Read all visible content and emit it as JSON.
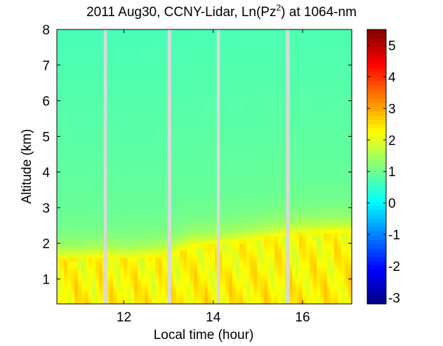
{
  "chart_data": {
    "type": "heatmap",
    "title": {
      "prefix": "2011 Aug30, CCNY-Lidar, Ln(Pz",
      "superscript": "2",
      "suffix": ") at 1064-nm"
    },
    "xlabel": "Local time (hour)",
    "ylabel": "Altitude (km)",
    "xlim": [
      10.5,
      17.1
    ],
    "ylim": [
      0.3,
      8.0
    ],
    "x_ticks": [
      12,
      14,
      16
    ],
    "y_ticks": [
      1,
      2,
      3,
      4,
      5,
      6,
      7,
      8
    ],
    "colorbar": {
      "range": [
        -3.2,
        5.5
      ],
      "ticks": [
        -3,
        -2,
        -1,
        0,
        1,
        2,
        3,
        4,
        5
      ],
      "colormap": "jet"
    },
    "data_gaps_hours": [
      [
        11.55,
        11.62
      ],
      [
        12.98,
        13.06
      ],
      [
        14.08,
        14.15
      ],
      [
        15.63,
        15.71
      ]
    ],
    "boundary_layer_top_km": {
      "x": [
        10.5,
        11.0,
        11.5,
        12.0,
        12.5,
        13.0,
        13.5,
        14.0,
        14.5,
        15.0,
        15.5,
        16.0,
        16.5,
        17.0
      ],
      "y": [
        1.55,
        1.55,
        1.6,
        1.55,
        1.6,
        1.65,
        1.9,
        1.95,
        2.0,
        2.1,
        2.2,
        2.25,
        2.3,
        2.3
      ]
    },
    "background_value": 1.0,
    "boundary_layer_value": 2.4
  },
  "colors": {
    "background": "#ffffff",
    "gap": "#d9d9d9"
  }
}
